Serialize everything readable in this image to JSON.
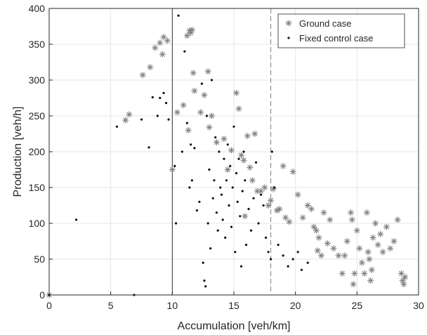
{
  "chart_data": {
    "type": "scatter",
    "xlabel": "Accumulation [veh/km]",
    "ylabel": "Production [veh/h]",
    "xlim": [
      0,
      30
    ],
    "ylim": [
      0,
      400
    ],
    "xticks": [
      0,
      5,
      10,
      15,
      20,
      25,
      30
    ],
    "yticks": [
      0,
      50,
      100,
      150,
      200,
      250,
      300,
      350,
      400
    ],
    "grid": true,
    "legend_position": "top-right",
    "vertical_lines": [
      {
        "x": 10,
        "style": "solid"
      },
      {
        "x": 18,
        "style": "dashed"
      }
    ],
    "series": [
      {
        "name": "Ground case",
        "marker": "asterisk",
        "color": "#808080",
        "points": [
          [
            0,
            0
          ],
          [
            6.2,
            244
          ],
          [
            6.5,
            252
          ],
          [
            7.6,
            307
          ],
          [
            8.2,
            318
          ],
          [
            8.6,
            345
          ],
          [
            9.0,
            352
          ],
          [
            9.3,
            360
          ],
          [
            9.6,
            355
          ],
          [
            9.2,
            336
          ],
          [
            10.0,
            175
          ],
          [
            10.4,
            255
          ],
          [
            10.9,
            265
          ],
          [
            11.2,
            362
          ],
          [
            11.4,
            369
          ],
          [
            11.5,
            366
          ],
          [
            11.6,
            370
          ],
          [
            11.3,
            230
          ],
          [
            11.7,
            310
          ],
          [
            11.8,
            285
          ],
          [
            12.3,
            255
          ],
          [
            12.6,
            279
          ],
          [
            12.9,
            312
          ],
          [
            13.0,
            234
          ],
          [
            13.2,
            250
          ],
          [
            13.6,
            213
          ],
          [
            14.2,
            218
          ],
          [
            14.5,
            175
          ],
          [
            14.8,
            202
          ],
          [
            15.2,
            282
          ],
          [
            15.4,
            260
          ],
          [
            15.6,
            195
          ],
          [
            15.8,
            188
          ],
          [
            15.9,
            110
          ],
          [
            16.1,
            222
          ],
          [
            16.3,
            178
          ],
          [
            16.5,
            160
          ],
          [
            16.7,
            225
          ],
          [
            16.9,
            145
          ],
          [
            17.2,
            145
          ],
          [
            17.5,
            150
          ],
          [
            17.8,
            125
          ],
          [
            18.0,
            132
          ],
          [
            18.2,
            148
          ],
          [
            18.5,
            118
          ],
          [
            18.7,
            120
          ],
          [
            19.0,
            180
          ],
          [
            19.2,
            108
          ],
          [
            19.5,
            102
          ],
          [
            19.8,
            172
          ],
          [
            20.2,
            140
          ],
          [
            20.6,
            108
          ],
          [
            21.0,
            125
          ],
          [
            21.3,
            120
          ],
          [
            21.5,
            95
          ],
          [
            21.7,
            90
          ],
          [
            21.8,
            62
          ],
          [
            21.9,
            80
          ],
          [
            22.1,
            55
          ],
          [
            22.3,
            115
          ],
          [
            22.6,
            72
          ],
          [
            22.8,
            105
          ],
          [
            23.1,
            65
          ],
          [
            23.5,
            55
          ],
          [
            23.8,
            30
          ],
          [
            24.0,
            55
          ],
          [
            24.2,
            75
          ],
          [
            24.5,
            115
          ],
          [
            24.6,
            105
          ],
          [
            24.7,
            15
          ],
          [
            24.8,
            30
          ],
          [
            25.0,
            90
          ],
          [
            25.2,
            65
          ],
          [
            25.4,
            45
          ],
          [
            25.6,
            30
          ],
          [
            25.8,
            115
          ],
          [
            25.9,
            60
          ],
          [
            26.0,
            50
          ],
          [
            26.1,
            20
          ],
          [
            26.2,
            35
          ],
          [
            26.3,
            80
          ],
          [
            26.5,
            100
          ],
          [
            26.7,
            70
          ],
          [
            26.9,
            85
          ],
          [
            27.1,
            60
          ],
          [
            27.4,
            95
          ],
          [
            27.7,
            65
          ],
          [
            28.0,
            75
          ],
          [
            28.3,
            105
          ],
          [
            28.6,
            30
          ],
          [
            28.7,
            20
          ],
          [
            28.8,
            15
          ],
          [
            28.9,
            25
          ]
        ]
      },
      {
        "name": "Fixed control case",
        "marker": "dot",
        "color": "#111111",
        "points": [
          [
            0,
            0
          ],
          [
            2.2,
            105
          ],
          [
            5.5,
            235
          ],
          [
            6.9,
            0
          ],
          [
            7.5,
            245
          ],
          [
            8.1,
            206
          ],
          [
            8.4,
            276
          ],
          [
            8.8,
            250
          ],
          [
            9.0,
            275
          ],
          [
            9.3,
            282
          ],
          [
            9.5,
            268
          ],
          [
            9.7,
            245
          ],
          [
            10.2,
            180
          ],
          [
            10.3,
            100
          ],
          [
            10.5,
            390
          ],
          [
            10.8,
            200
          ],
          [
            11.0,
            340
          ],
          [
            11.2,
            240
          ],
          [
            11.4,
            150
          ],
          [
            11.5,
            210
          ],
          [
            11.6,
            160
          ],
          [
            11.8,
            205
          ],
          [
            12.0,
            118
          ],
          [
            12.2,
            130
          ],
          [
            12.4,
            295
          ],
          [
            12.5,
            45
          ],
          [
            12.6,
            20
          ],
          [
            12.7,
            12
          ],
          [
            12.8,
            250
          ],
          [
            12.9,
            100
          ],
          [
            13.0,
            175
          ],
          [
            13.1,
            65
          ],
          [
            13.2,
            300
          ],
          [
            13.3,
            135
          ],
          [
            13.4,
            160
          ],
          [
            13.5,
            220
          ],
          [
            13.6,
            115
          ],
          [
            13.7,
            90
          ],
          [
            13.8,
            200
          ],
          [
            13.9,
            150
          ],
          [
            14.0,
            140
          ],
          [
            14.1,
            105
          ],
          [
            14.2,
            190
          ],
          [
            14.3,
            80
          ],
          [
            14.4,
            160
          ],
          [
            14.5,
            210
          ],
          [
            14.6,
            125
          ],
          [
            14.7,
            180
          ],
          [
            14.8,
            95
          ],
          [
            14.9,
            150
          ],
          [
            15.0,
            235
          ],
          [
            15.1,
            60
          ],
          [
            15.2,
            170
          ],
          [
            15.3,
            130
          ],
          [
            15.4,
            190
          ],
          [
            15.5,
            110
          ],
          [
            15.6,
            40
          ],
          [
            15.7,
            145
          ],
          [
            15.8,
            200
          ],
          [
            15.9,
            160
          ],
          [
            16.0,
            70
          ],
          [
            16.2,
            120
          ],
          [
            16.4,
            90
          ],
          [
            16.6,
            135
          ],
          [
            16.8,
            185
          ],
          [
            17.0,
            100
          ],
          [
            17.2,
            140
          ],
          [
            17.4,
            125
          ],
          [
            17.6,
            80
          ],
          [
            17.8,
            60
          ],
          [
            18.0,
            50
          ],
          [
            18.1,
            200
          ],
          [
            18.3,
            150
          ],
          [
            18.6,
            70
          ],
          [
            19.0,
            55
          ],
          [
            19.4,
            40
          ],
          [
            19.8,
            50
          ],
          [
            20.2,
            60
          ],
          [
            20.5,
            35
          ],
          [
            21.0,
            45
          ]
        ]
      }
    ]
  }
}
